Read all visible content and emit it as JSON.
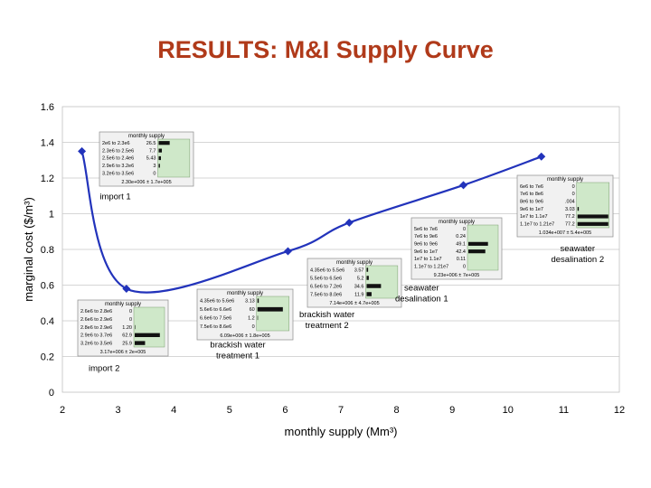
{
  "slide": {
    "title": "RESULTS: M&I Supply Curve"
  },
  "chart_data": {
    "type": "line",
    "title": "",
    "xlabel": "monthly supply (Mm³)",
    "ylabel": "marginal cost ($/m³)",
    "xlim": [
      2,
      12
    ],
    "ylim": [
      0,
      1.6
    ],
    "x_ticks": [
      "2",
      "3",
      "4",
      "5",
      "6",
      "7",
      "8",
      "9",
      "10",
      "11",
      "12"
    ],
    "y_ticks": [
      "0",
      "0.2",
      "0.4",
      "0.6",
      "0.8",
      "1",
      "1.2",
      "1.4",
      "1.6"
    ],
    "grid": "horizontal",
    "series": [
      {
        "color": "#2233bb",
        "points": [
          {
            "x": 2.35,
            "y": 1.35
          },
          {
            "x": 3.15,
            "y": 0.58
          },
          {
            "x": 6.05,
            "y": 0.79
          },
          {
            "x": 7.15,
            "y": 0.95
          },
          {
            "x": 9.2,
            "y": 1.16
          },
          {
            "x": 10.6,
            "y": 1.32
          }
        ]
      }
    ],
    "annotations": [
      {
        "lines": [
          "import 1"
        ],
        "x": 2.95,
        "y": 1.08
      },
      {
        "lines": [
          "import 2"
        ],
        "x": 2.75,
        "y": 0.12
      },
      {
        "lines": [
          "brackish water",
          "treatment 1"
        ],
        "x": 5.15,
        "y": 0.25
      },
      {
        "lines": [
          "brackish water",
          "treatment 2"
        ],
        "x": 6.75,
        "y": 0.42
      },
      {
        "lines": [
          "seawater",
          "desalination 1"
        ],
        "x": 8.45,
        "y": 0.57
      },
      {
        "lines": [
          "seawater",
          "desalination 2"
        ],
        "x": 11.25,
        "y": 0.79
      }
    ],
    "insets": [
      {
        "title": "monthly supply",
        "rows": [
          [
            "2e6 to 2.3e6",
            "26.5"
          ],
          [
            "2.3e6 to 2.5e6",
            "7.7"
          ],
          [
            "2.5e6 to 2.4e6",
            "5.43"
          ],
          [
            "2.9e6 to 3.2e6",
            "3"
          ],
          [
            "3.2e6 to 3.5e6",
            "0"
          ]
        ],
        "footer": "2.30e+006 ± 1.7e+005"
      },
      {
        "title": "monthly supply",
        "rows": [
          [
            "2.6e6 to 2.8e6",
            "0"
          ],
          [
            "2.6e6 to 2.9e6",
            "0"
          ],
          [
            "2.8e6 to 2.9e6",
            "1.20"
          ],
          [
            "2.9e6 to 3.7e6",
            "62.9"
          ],
          [
            "3.2e6 to 3.5e6",
            "25.9"
          ]
        ],
        "footer": "3.17e+006 ± 2e+005"
      },
      {
        "title": "monthly supply",
        "rows": [
          [
            "4.35e6 to 5.6e6",
            "3.13"
          ],
          [
            "5.6e6 to 6.6e6",
            "60"
          ],
          [
            "6.6e6 to 7.5e6",
            "1.2"
          ],
          [
            "7.5e6 to 8.6e6",
            "0"
          ]
        ],
        "footer": "6.09e+006 ± 1.8e+005"
      },
      {
        "title": "monthly supply",
        "rows": [
          [
            "4.35e6 to 5.5e6",
            "3.57"
          ],
          [
            "5.5e6 to 6.5e6",
            "5.2"
          ],
          [
            "6.5e6 to 7.2e6",
            "34.6"
          ],
          [
            "7.5e6 to 8.0e6",
            "11.9"
          ]
        ],
        "footer": "7.14e+006 ± 4.7e+005"
      },
      {
        "title": "monthly supply",
        "rows": [
          [
            "5e6 to 7e6",
            "0"
          ],
          [
            "7e6 to 9e6",
            "0.24"
          ],
          [
            "9e6 to 9e6",
            "49.1"
          ],
          [
            "9e6 to 1e7",
            "42.4"
          ],
          [
            "1e7 to 1.1e7",
            "0.11"
          ],
          [
            "1.1e7 to 1.21e7",
            "0"
          ]
        ],
        "footer": "9.23e+006 ± 7e+005"
      },
      {
        "title": "monthly supply",
        "rows": [
          [
            "6e6 to 7e6",
            "0"
          ],
          [
            "7e6 to 8e6",
            "0"
          ],
          [
            "8e6 to 9e6",
            ".004"
          ],
          [
            "9e6 to 1e7",
            "3.03"
          ],
          [
            "1e7 to 1.1e7",
            "77.2"
          ],
          [
            "1.1e7 to 1.21e7",
            "77.2"
          ]
        ],
        "footer": "1.034e+007 ± 5.4e+005"
      }
    ]
  }
}
